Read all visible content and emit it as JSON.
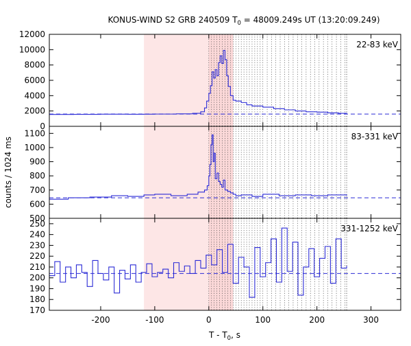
{
  "chart_data": {
    "type": "line",
    "title_main": "KONUS-WIND S2 GRB 240509 T",
    "title_sub": "0",
    "title_rest": " = 48009.249s UT (13:20:09.249)",
    "xlabel_main": "T - T",
    "xlabel_sub": "0",
    "xlabel_rest": ", s",
    "ylabel": "counts / 1024 ms",
    "xlim": [
      -295,
      355
    ],
    "x_ticks": [
      -200,
      -100,
      0,
      100,
      200,
      300
    ],
    "colors": {
      "series": "#2b2bd6",
      "shade": "#fde6e6",
      "shade_inner": "#fbd8d8"
    },
    "shaded_background": [
      -120,
      0
    ],
    "shaded_high_res": [
      0,
      45
    ],
    "high_res_window": [
      0,
      255
    ],
    "panels": [
      {
        "label": "22-83 keV",
        "ylim": [
          0,
          12000
        ],
        "y_ticks": [
          0,
          2000,
          4000,
          6000,
          8000,
          10000,
          12000
        ],
        "background": 1600,
        "x": [
          -295,
          -250,
          -200,
          -150,
          -120,
          -100,
          -60,
          -30,
          -15,
          -8,
          -4,
          0,
          3,
          6,
          9,
          12,
          15,
          18,
          21,
          24,
          27,
          30,
          33,
          36,
          40,
          45,
          50,
          60,
          70,
          80,
          100,
          120,
          140,
          160,
          180,
          200,
          220,
          240,
          255
        ],
        "y": [
          1550,
          1560,
          1580,
          1570,
          1580,
          1600,
          1630,
          1700,
          1900,
          2400,
          3300,
          4300,
          5300,
          7100,
          6300,
          7400,
          6600,
          8300,
          9200,
          8200,
          9900,
          8700,
          6600,
          5200,
          4000,
          3400,
          3300,
          3100,
          2800,
          2650,
          2500,
          2300,
          2150,
          2000,
          1900,
          1850,
          1750,
          1700,
          1650
        ]
      },
      {
        "label": "83-331 keV",
        "ylim": [
          500,
          1150
        ],
        "y_ticks": [
          500,
          600,
          700,
          800,
          900,
          1000,
          1100
        ],
        "background": 645,
        "x": [
          -295,
          -260,
          -220,
          -180,
          -150,
          -120,
          -100,
          -70,
          -40,
          -20,
          -8,
          -3,
          0,
          2,
          4,
          6,
          8,
          10,
          12,
          15,
          18,
          21,
          24,
          27,
          30,
          35,
          40,
          45,
          50,
          60,
          80,
          100,
          130,
          160,
          190,
          220,
          255
        ],
        "y": [
          635,
          645,
          650,
          660,
          655,
          665,
          670,
          660,
          670,
          685,
          700,
          730,
          800,
          880,
          1020,
          1090,
          900,
          960,
          780,
          820,
          760,
          740,
          720,
          770,
          700,
          690,
          680,
          670,
          660,
          665,
          655,
          670,
          660,
          665,
          660,
          665,
          660
        ]
      },
      {
        "label": "331-1252 keV",
        "ylim": [
          170,
          255
        ],
        "y_ticks": [
          170,
          180,
          190,
          200,
          210,
          220,
          230,
          240,
          250
        ],
        "background": 204,
        "x": [
          -295,
          -285,
          -275,
          -265,
          -255,
          -245,
          -235,
          -225,
          -215,
          -205,
          -195,
          -185,
          -175,
          -165,
          -155,
          -145,
          -135,
          -125,
          -115,
          -105,
          -95,
          -85,
          -75,
          -65,
          -55,
          -45,
          -35,
          -25,
          -15,
          -5,
          5,
          15,
          25,
          35,
          45,
          55,
          65,
          75,
          85,
          95,
          105,
          115,
          125,
          135,
          145,
          155,
          165,
          175,
          185,
          195,
          205,
          215,
          225,
          235,
          245,
          255
        ],
        "y": [
          202,
          215,
          196,
          210,
          200,
          212,
          205,
          192,
          216,
          204,
          198,
          210,
          186,
          207,
          199,
          212,
          196,
          205,
          213,
          201,
          205,
          208,
          200,
          214,
          206,
          211,
          204,
          216,
          209,
          221,
          212,
          226,
          205,
          231,
          195,
          219,
          210,
          182,
          228,
          201,
          214,
          236,
          196,
          246,
          206,
          233,
          184,
          210,
          227,
          201,
          218,
          229,
          195,
          236,
          209,
          211
        ]
      }
    ]
  }
}
